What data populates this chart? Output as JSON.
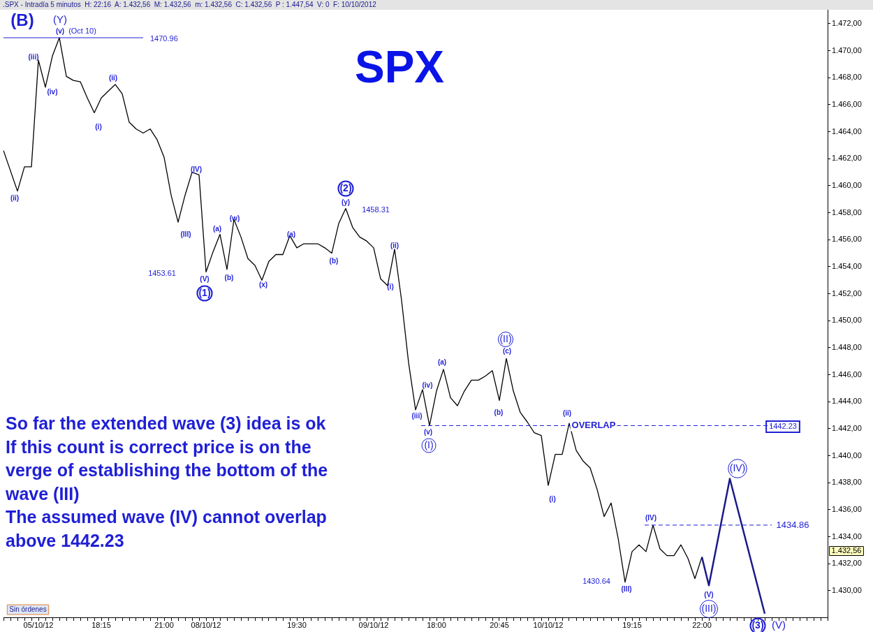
{
  "chart_data": {
    "type": "line",
    "title": "SPX",
    "subtitle": ".SPX - Intradía 5 minutos  H: 22:16  A: 1.432,56  M: 1.432,56  m: 1.432,56  C: 1.432,56  P : 1.447,54  V: 0  F: 10/10/2012",
    "categories": [
      null,
      null,
      null,
      null,
      null,
      "05/10/12",
      null,
      null,
      null,
      null,
      null,
      null,
      null,
      null,
      "18:15",
      null,
      null,
      null,
      null,
      null,
      null,
      null,
      null,
      "21:00",
      null,
      null,
      null,
      null,
      null,
      "08/10/12",
      null,
      null,
      null,
      null,
      null,
      null,
      null,
      null,
      null,
      null,
      null,
      null,
      "19:30",
      null,
      null,
      null,
      null,
      null,
      null,
      null,
      null,
      null,
      null,
      "09/10/12",
      null,
      null,
      null,
      null,
      null,
      null,
      null,
      null,
      "18:00",
      null,
      null,
      null,
      null,
      null,
      null,
      null,
      null,
      "20:45",
      null,
      null,
      null,
      null,
      null,
      null,
      "10/10/12",
      null,
      null,
      null,
      null,
      null,
      null,
      null,
      null,
      null,
      null,
      null,
      "19:15",
      null,
      null,
      null,
      null,
      null,
      null,
      null,
      null,
      null,
      "22:00",
      null,
      null,
      null,
      null,
      null,
      null,
      null,
      null,
      null,
      null,
      null,
      null,
      null,
      null,
      null,
      null,
      null,
      null
    ],
    "series": [
      {
        "color": "#000000",
        "values": [
          1462.6,
          1461.1,
          1459.6,
          1461.4,
          1461.4,
          1469.3,
          1467.3,
          1469.6,
          1470.96,
          1468.1,
          1467.8,
          1467.7,
          1466.5,
          1465.4,
          1466.5,
          1467.0,
          1467.5,
          1466.8,
          1464.7,
          1464.2,
          1463.9,
          1464.2,
          1463.4,
          1462.1,
          1459.3,
          1457.3,
          1459.3,
          1461.0,
          1460.8,
          1453.61,
          1455.1,
          1456.4,
          1453.8,
          1457.5,
          1456.2,
          1454.6,
          1454.1,
          1453.0,
          1454.4,
          1454.9,
          1454.9,
          1456.3,
          1455.4,
          1455.7,
          1455.7,
          1455.7,
          1455.4,
          1455.0,
          1457.2,
          1458.31,
          1456.9,
          1456.2,
          1455.9,
          1455.4,
          1453.1,
          1452.6,
          1455.3,
          1451.5,
          1446.9,
          1443.4,
          1444.9,
          1442.23,
          1444.8,
          1446.4,
          1444.3,
          1443.7,
          1444.8,
          1445.6,
          1445.6,
          1445.9,
          1446.3,
          1444.1,
          1447.2,
          1444.8,
          1443.2,
          1442.5,
          1441.7,
          1441.5,
          1437.8,
          1440.1,
          1440.1,
          1442.4,
          1440.4,
          1439.6,
          1439.1,
          1437.5,
          1435.5,
          1436.5,
          1433.9,
          1430.64,
          1432.9,
          1433.4,
          1432.9,
          1434.86,
          1433.1,
          1432.6,
          1432.6,
          1433.4,
          1432.4,
          1430.9,
          1432.5,
          null,
          null,
          null,
          null,
          null,
          null,
          null,
          null,
          null,
          null,
          null,
          null,
          null,
          null,
          null,
          null,
          null,
          null
        ]
      },
      {
        "color": "#1a1a8c",
        "values": [
          null,
          null,
          null,
          null,
          null,
          null,
          null,
          null,
          null,
          null,
          null,
          null,
          null,
          null,
          null,
          null,
          null,
          null,
          null,
          null,
          null,
          null,
          null,
          null,
          null,
          null,
          null,
          null,
          null,
          null,
          null,
          null,
          null,
          null,
          null,
          null,
          null,
          null,
          null,
          null,
          null,
          null,
          null,
          null,
          null,
          null,
          null,
          null,
          null,
          null,
          null,
          null,
          null,
          null,
          null,
          null,
          null,
          null,
          null,
          null,
          null,
          null,
          null,
          null,
          null,
          null,
          null,
          null,
          null,
          null,
          null,
          null,
          null,
          null,
          null,
          null,
          null,
          null,
          null,
          null,
          null,
          null,
          null,
          null,
          null,
          null,
          null,
          null,
          null,
          null,
          null,
          null,
          null,
          null,
          null,
          null,
          null,
          null,
          null,
          null,
          1432.5,
          1430.4,
          null,
          null,
          1438.3,
          null,
          null,
          null,
          null,
          1428.3,
          null,
          null,
          null,
          null,
          null,
          null,
          null,
          null,
          null
        ]
      }
    ],
    "ylim": [
      1428.03,
      1473.03
    ],
    "yticks": [
      {
        "value": 1430,
        "label": "1.430,00"
      },
      {
        "value": 1432,
        "label": "1.432,00"
      },
      {
        "value": 1434,
        "label": "1.434,00"
      },
      {
        "value": 1436,
        "label": "1.436,00"
      },
      {
        "value": 1438,
        "label": "1.438,00"
      },
      {
        "value": 1440,
        "label": "1.440,00"
      },
      {
        "value": 1442,
        "label": "1.442,00"
      },
      {
        "value": 1444,
        "label": "1.444,00"
      },
      {
        "value": 1446,
        "label": "1.446,00"
      },
      {
        "value": 1448,
        "label": "1.448,00"
      },
      {
        "value": 1450,
        "label": "1.450,00"
      },
      {
        "value": 1452,
        "label": "1.452,00"
      },
      {
        "value": 1454,
        "label": "1.454,00"
      },
      {
        "value": 1456,
        "label": "1.456,00"
      },
      {
        "value": 1458,
        "label": "1.458,00"
      },
      {
        "value": 1460,
        "label": "1.460,00"
      },
      {
        "value": 1462,
        "label": "1.462,00"
      },
      {
        "value": 1464,
        "label": "1.464,00"
      },
      {
        "value": 1466,
        "label": "1.466,00"
      },
      {
        "value": 1468,
        "label": "1.468,00"
      },
      {
        "value": 1470,
        "label": "1.470,00"
      },
      {
        "value": 1472,
        "label": "1.472,00"
      }
    ],
    "ref_lines": [
      {
        "axis": "y",
        "value": 1470.96,
        "label": "1470.96",
        "line_style": "solid",
        "color": "#1f1fd6"
      },
      {
        "axis": "y",
        "value": 1442.23,
        "label": "OVERLAP",
        "line_style": "dashed",
        "color": "#1f1fd6"
      },
      {
        "axis": "y",
        "value": 1434.86,
        "label": "1434.86",
        "line_style": "dashed",
        "color": "#1f1fd6"
      }
    ],
    "annotations": [
      "(B)",
      "(Y)",
      "(v)",
      "(Oct 10)",
      "(iii)",
      "(iv)",
      "(ii)",
      "(i)",
      "(ii)",
      "(III)",
      "(IV)",
      "(V)",
      "(1)",
      "1453.61",
      "(a)",
      "(b)",
      "(w)",
      "(x)",
      "(a)",
      "(b)",
      "(2)",
      "(y)",
      "1458.31",
      "(ii)",
      "(i)",
      "(iii)",
      "(iv)",
      "(v)",
      "(I)",
      "(a)",
      "(b)",
      "(II)",
      "(c)",
      "(ii)",
      "(i)",
      "1442.23",
      "(IV)",
      "1430.64",
      "(III)",
      "(IV)",
      "(V)",
      "(III)",
      "(3)",
      "(V)",
      "1.432,56",
      "Sin órdenes",
      "So far the extended wave (3) idea is ok\nIf this count is correct price is on the\nverge of establishing the bottom of the\nwave (III)\nThe assumed wave (IV) cannot overlap\nabove 1442.23"
    ],
    "legend": false,
    "marker": "none",
    "line_style": "solid"
  }
}
